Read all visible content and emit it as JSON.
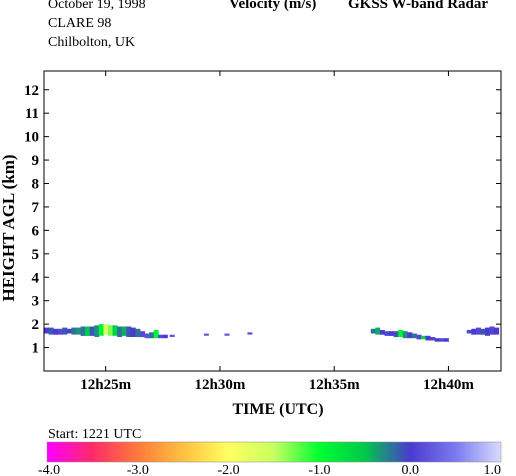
{
  "header": {
    "date": "October  19, 1998",
    "campaign": "CLARE 98",
    "location": "Chilbolton, UK",
    "quantity": "Velocity (m/s)",
    "instrument": "GKSS  W-band Radar"
  },
  "footer": {
    "start_text": "Start: 1221 UTC"
  },
  "colors": {
    "background": "#ffffff",
    "axis": "#000000",
    "scale": [
      "#ff00ff",
      "#ff2a6a",
      "#ff7a3a",
      "#ffc040",
      "#ffff60",
      "#c8ff60",
      "#00ff30",
      "#00c84a",
      "#4a3ad0",
      "#7a7af0",
      "#d8dcff"
    ]
  },
  "chart_data": {
    "type": "heatmap",
    "title": "Velocity (m/s)",
    "xlabel": "TIME (UTC)",
    "ylabel": "HEIGHT AGL (km)",
    "x_unit": "minutes after 12h00 UTC",
    "xlim": [
      22.3,
      42.3
    ],
    "ylim": [
      0,
      12.8
    ],
    "x_ticks": [
      25,
      30,
      35,
      40
    ],
    "x_tick_labels": [
      "12h25m",
      "12h30m",
      "12h35m",
      "12h40m"
    ],
    "y_ticks": [
      1,
      2,
      3,
      4,
      5,
      6,
      7,
      8,
      9,
      10,
      11,
      12
    ],
    "y_tick_labels": [
      "1",
      "2",
      "3",
      "4",
      "5",
      "6",
      "7",
      "8",
      "9",
      "10",
      "11",
      "12"
    ],
    "grid": false,
    "colorbar": {
      "min": -4.0,
      "max": 1.0,
      "ticks": [
        -4.0,
        -3.0,
        -2.0,
        -1.0,
        0.0,
        1.0
      ],
      "tick_labels": [
        "-4.0",
        "-3.0",
        "-2.0",
        "-1.0",
        "0.0",
        "1.0"
      ]
    },
    "cells": [
      {
        "t": 22.4,
        "h0": 1.6,
        "h1": 1.85,
        "v": 0.0
      },
      {
        "t": 22.6,
        "h0": 1.55,
        "h1": 1.85,
        "v": -0.1
      },
      {
        "t": 22.8,
        "h0": 1.55,
        "h1": 1.8,
        "v": 0.0
      },
      {
        "t": 23.0,
        "h0": 1.55,
        "h1": 1.8,
        "v": 0.1
      },
      {
        "t": 23.2,
        "h0": 1.55,
        "h1": 1.85,
        "v": -0.1
      },
      {
        "t": 23.4,
        "h0": 1.6,
        "h1": 1.8,
        "v": 0.0
      },
      {
        "t": 23.6,
        "h0": 1.55,
        "h1": 1.85,
        "v": -0.2
      },
      {
        "t": 23.8,
        "h0": 1.55,
        "h1": 1.85,
        "v": -0.3
      },
      {
        "t": 24.0,
        "h0": 1.5,
        "h1": 1.9,
        "v": -0.2
      },
      {
        "t": 24.2,
        "h0": 1.5,
        "h1": 1.9,
        "v": -0.5
      },
      {
        "t": 24.4,
        "h0": 1.5,
        "h1": 1.9,
        "v": -0.1
      },
      {
        "t": 24.6,
        "h0": 1.45,
        "h1": 1.95,
        "v": -0.3
      },
      {
        "t": 24.8,
        "h0": 1.5,
        "h1": 2.0,
        "v": -0.9
      },
      {
        "t": 25.0,
        "h0": 1.55,
        "h1": 2.0,
        "v": -1.6
      },
      {
        "t": 25.2,
        "h0": 1.5,
        "h1": 1.95,
        "v": -1.3
      },
      {
        "t": 25.4,
        "h0": 1.5,
        "h1": 1.95,
        "v": -0.6
      },
      {
        "t": 25.6,
        "h0": 1.45,
        "h1": 1.9,
        "v": -0.2
      },
      {
        "t": 25.8,
        "h0": 1.5,
        "h1": 1.9,
        "v": -0.4
      },
      {
        "t": 26.0,
        "h0": 1.45,
        "h1": 1.9,
        "v": -0.1
      },
      {
        "t": 26.2,
        "h0": 1.45,
        "h1": 1.85,
        "v": 0.0
      },
      {
        "t": 26.4,
        "h0": 1.45,
        "h1": 1.8,
        "v": -0.2
      },
      {
        "t": 26.6,
        "h0": 1.45,
        "h1": 1.7,
        "v": 0.1
      },
      {
        "t": 26.8,
        "h0": 1.4,
        "h1": 1.6,
        "v": 0.2
      },
      {
        "t": 27.0,
        "h0": 1.4,
        "h1": 1.65,
        "v": -0.2
      },
      {
        "t": 27.2,
        "h0": 1.4,
        "h1": 1.75,
        "v": -0.9
      },
      {
        "t": 27.4,
        "h0": 1.4,
        "h1": 1.55,
        "v": 0.1
      },
      {
        "t": 27.6,
        "h0": 1.4,
        "h1": 1.55,
        "v": 0.0
      },
      {
        "t": 27.9,
        "h0": 1.45,
        "h1": 1.55,
        "v": 0.2
      },
      {
        "t": 29.4,
        "h0": 1.5,
        "h1": 1.6,
        "v": 0.3
      },
      {
        "t": 30.3,
        "h0": 1.5,
        "h1": 1.6,
        "v": 0.3
      },
      {
        "t": 31.3,
        "h0": 1.55,
        "h1": 1.65,
        "v": 0.2
      },
      {
        "t": 36.7,
        "h0": 1.6,
        "h1": 1.8,
        "v": -0.2
      },
      {
        "t": 36.9,
        "h0": 1.55,
        "h1": 1.85,
        "v": -0.4
      },
      {
        "t": 37.1,
        "h0": 1.55,
        "h1": 1.75,
        "v": 0.0
      },
      {
        "t": 37.3,
        "h0": 1.5,
        "h1": 1.7,
        "v": 0.1
      },
      {
        "t": 37.5,
        "h0": 1.5,
        "h1": 1.7,
        "v": 0.0
      },
      {
        "t": 37.7,
        "h0": 1.45,
        "h1": 1.7,
        "v": -0.1
      },
      {
        "t": 37.9,
        "h0": 1.45,
        "h1": 1.75,
        "v": -0.9
      },
      {
        "t": 38.1,
        "h0": 1.4,
        "h1": 1.7,
        "v": -0.3
      },
      {
        "t": 38.3,
        "h0": 1.4,
        "h1": 1.65,
        "v": 0.0
      },
      {
        "t": 38.5,
        "h0": 1.4,
        "h1": 1.6,
        "v": -0.2
      },
      {
        "t": 38.7,
        "h0": 1.35,
        "h1": 1.55,
        "v": 0.1
      },
      {
        "t": 38.9,
        "h0": 1.35,
        "h1": 1.5,
        "v": -0.6
      },
      {
        "t": 39.1,
        "h0": 1.3,
        "h1": 1.5,
        "v": 0.0
      },
      {
        "t": 39.3,
        "h0": 1.3,
        "h1": 1.45,
        "v": 0.1
      },
      {
        "t": 39.5,
        "h0": 1.25,
        "h1": 1.4,
        "v": 0.0
      },
      {
        "t": 39.7,
        "h0": 1.25,
        "h1": 1.4,
        "v": 0.1
      },
      {
        "t": 39.9,
        "h0": 1.25,
        "h1": 1.4,
        "v": 0.0
      },
      {
        "t": 40.9,
        "h0": 1.6,
        "h1": 1.75,
        "v": 0.1
      },
      {
        "t": 41.1,
        "h0": 1.55,
        "h1": 1.8,
        "v": 0.0
      },
      {
        "t": 41.3,
        "h0": 1.55,
        "h1": 1.85,
        "v": 0.1
      },
      {
        "t": 41.5,
        "h0": 1.55,
        "h1": 1.8,
        "v": -0.1
      },
      {
        "t": 41.7,
        "h0": 1.5,
        "h1": 1.85,
        "v": 0.0
      },
      {
        "t": 41.9,
        "h0": 1.55,
        "h1": 1.9,
        "v": 0.1
      },
      {
        "t": 42.1,
        "h0": 1.55,
        "h1": 1.85,
        "v": 0.0
      }
    ]
  }
}
